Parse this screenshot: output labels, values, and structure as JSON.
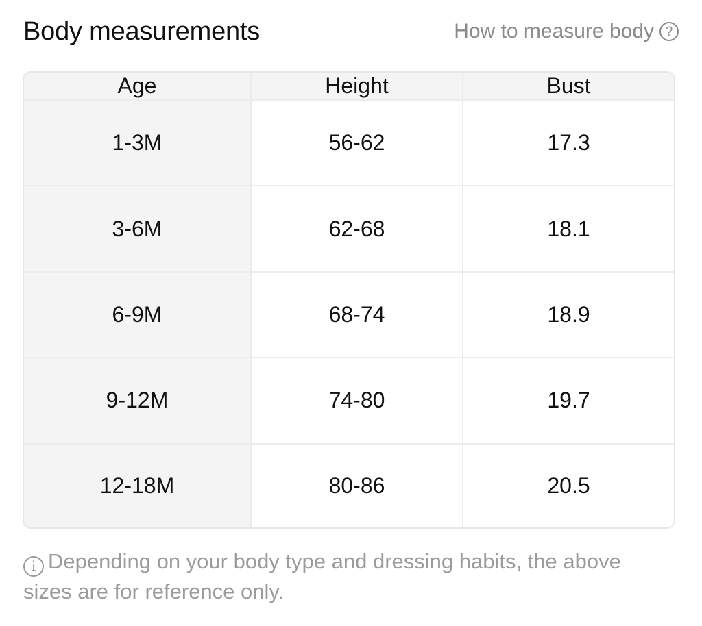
{
  "header": {
    "title": "Body measurements",
    "how_to_link": "How to measure body",
    "help_icon": "question-circle-icon"
  },
  "table": {
    "columns": [
      "Age",
      "Height",
      "Bust"
    ],
    "rows": [
      [
        "1-3M",
        "56-62",
        "17.3"
      ],
      [
        "3-6M",
        "62-68",
        "18.1"
      ],
      [
        "6-9M",
        "68-74",
        "18.9"
      ],
      [
        "9-12M",
        "74-80",
        "19.7"
      ],
      [
        "12-18M",
        "80-86",
        "20.5"
      ]
    ]
  },
  "note": {
    "icon": "info-icon",
    "text": "Depending on your body type and dressing habits, the above sizes are for reference only."
  },
  "colors": {
    "header_bg": "#f4f4f4",
    "border": "#ececec",
    "muted_text": "#8a8a8a"
  }
}
